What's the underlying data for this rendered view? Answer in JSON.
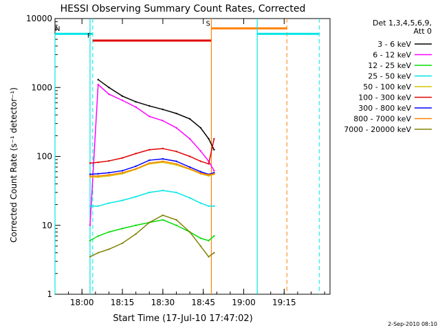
{
  "chart_data": {
    "type": "line",
    "title": "HESSI Observing Summary Count Rates, Corrected",
    "xlabel": "Start Time (17-Jul-10 17:47:02)",
    "ylabel": "Corrected Count Rate (s⁻¹ detector⁻¹)",
    "x_minutes_range": [
      -10,
      32
    ],
    "xlim": [
      "17:50",
      "19:32"
    ],
    "ylim": [
      1,
      10000
    ],
    "yscale": "log",
    "x_ticks": [
      "18:00",
      "18:15",
      "18:30",
      "18:45",
      "19:00",
      "19:15"
    ],
    "y_ticks": [
      "1",
      "10",
      "100",
      "1000",
      "10000"
    ],
    "legend": {
      "placement": "right",
      "header": [
        "Det 1,3,4,5,6,9,",
        "Att 0"
      ],
      "entries": [
        {
          "label": "3 - 6 keV",
          "color": "#000000"
        },
        {
          "label": "6 - 12 keV",
          "color": "#ff00ff"
        },
        {
          "label": "12 - 25 keV",
          "color": "#00dd00"
        },
        {
          "label": "25 - 50 keV",
          "color": "#00e5e5"
        },
        {
          "label": "50 - 100 keV",
          "color": "#d4c400"
        },
        {
          "label": "100 - 300 keV",
          "color": "#e00000"
        },
        {
          "label": "300 - 800 keV",
          "color": "#0000ff"
        },
        {
          "label": "800 - 7000 keV",
          "color": "#ff8000"
        },
        {
          "label": "7000 - 20000 keV",
          "color": "#808000"
        }
      ]
    },
    "series": [
      {
        "name": "3 - 6 keV",
        "color": "#000000",
        "x": [
          "18:06",
          "18:10",
          "18:15",
          "18:20",
          "18:25",
          "18:30",
          "18:35",
          "18:40",
          "18:44",
          "18:47",
          "18:49"
        ],
        "y": [
          1300,
          1000,
          750,
          620,
          540,
          480,
          420,
          350,
          260,
          180,
          125
        ]
      },
      {
        "name": "6 - 12 keV",
        "color": "#ff00ff",
        "x": [
          "18:03",
          "18:06",
          "18:10",
          "18:15",
          "18:20",
          "18:25",
          "18:30",
          "18:35",
          "18:40",
          "18:44",
          "18:47",
          "18:49"
        ],
        "y": [
          10,
          1100,
          800,
          650,
          520,
          380,
          330,
          260,
          180,
          120,
          85,
          62
        ]
      },
      {
        "name": "12 - 25 keV",
        "color": "#00dd00",
        "x": [
          "18:03",
          "18:06",
          "18:10",
          "18:15",
          "18:20",
          "18:25",
          "18:30",
          "18:35",
          "18:40",
          "18:44",
          "18:47",
          "18:49"
        ],
        "y": [
          6,
          7,
          8,
          9,
          10,
          11,
          12,
          10,
          8,
          6.5,
          6,
          7
        ]
      },
      {
        "name": "25 - 50 keV",
        "color": "#00e5e5",
        "x": [
          "18:03",
          "18:06",
          "18:10",
          "18:15",
          "18:20",
          "18:25",
          "18:30",
          "18:35",
          "18:40",
          "18:44",
          "18:47",
          "18:49"
        ],
        "y": [
          19,
          19,
          21,
          23,
          26,
          30,
          32,
          30,
          25,
          21,
          19,
          19
        ]
      },
      {
        "name": "50 - 100 keV",
        "color": "#d4c400",
        "x": [
          "18:03",
          "18:06",
          "18:10",
          "18:15",
          "18:20",
          "18:25",
          "18:30",
          "18:35",
          "18:40",
          "18:44",
          "18:47",
          "18:49"
        ],
        "y": [
          50,
          50,
          52,
          56,
          65,
          78,
          82,
          75,
          65,
          56,
          52,
          55
        ]
      },
      {
        "name": "100 - 300 keV",
        "color": "#e00000",
        "x": [
          "18:03",
          "18:06",
          "18:10",
          "18:15",
          "18:20",
          "18:25",
          "18:30",
          "18:35",
          "18:40",
          "18:44",
          "18:47",
          "18:49"
        ],
        "y": [
          80,
          82,
          86,
          95,
          110,
          125,
          130,
          118,
          100,
          85,
          78,
          180
        ]
      },
      {
        "name": "300 - 800 keV",
        "color": "#0000ff",
        "x": [
          "18:03",
          "18:06",
          "18:10",
          "18:15",
          "18:20",
          "18:25",
          "18:30",
          "18:35",
          "18:40",
          "18:44",
          "18:47",
          "18:49"
        ],
        "y": [
          55,
          56,
          58,
          62,
          72,
          88,
          92,
          85,
          70,
          60,
          55,
          58
        ]
      },
      {
        "name": "800 - 7000 keV",
        "color": "#ff8000",
        "x": [
          "18:03",
          "18:06",
          "18:10",
          "18:15",
          "18:20",
          "18:25",
          "18:30",
          "18:35",
          "18:40",
          "18:44",
          "18:47",
          "18:49"
        ],
        "y": [
          52,
          52,
          54,
          58,
          66,
          80,
          85,
          78,
          66,
          57,
          54,
          56
        ]
      },
      {
        "name": "7000 - 20000 keV",
        "color": "#808000",
        "x": [
          "18:03",
          "18:06",
          "18:10",
          "18:15",
          "18:20",
          "18:25",
          "18:30",
          "18:35",
          "18:40",
          "18:44",
          "18:47",
          "18:49"
        ],
        "y": [
          3.5,
          4,
          4.5,
          5.5,
          7.5,
          11,
          14,
          12,
          8,
          5,
          3.5,
          4
        ]
      }
    ],
    "flags": [
      {
        "label": "N",
        "color": "#00e5e5",
        "x_range": [
          "17:50",
          "18:04"
        ],
        "y": 6000,
        "dashed_at": "18:04",
        "solid_at": []
      },
      {
        "label": "F",
        "color": "#e00000",
        "x_range": [
          "18:04",
          "18:48"
        ],
        "y": 4800
      },
      {
        "label": "S",
        "color": "#ff8000",
        "x_range": [
          "18:48",
          "19:16"
        ],
        "y": 7200,
        "dashed_at": "19:16"
      },
      {
        "label": "",
        "color": "#00e5e5",
        "x_range": [
          "19:05",
          "19:28"
        ],
        "y": 6000,
        "dashed_at": "19:28"
      }
    ],
    "footer": "2-Sep-2010 08:10"
  }
}
